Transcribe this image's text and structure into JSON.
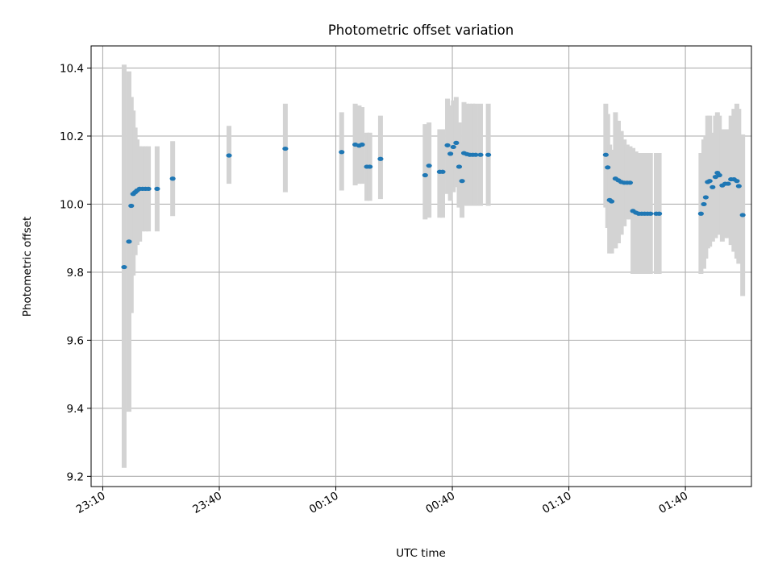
{
  "chart_data": {
    "type": "scatter",
    "title": "Photometric offset variation",
    "xlabel": "UTC time",
    "ylabel": "Photometric offset",
    "x_unit": "UTC clock time",
    "x_ticks": [
      "23:10",
      "23:40",
      "00:10",
      "00:40",
      "01:10",
      "01:40"
    ],
    "y_ticks": [
      "9.2",
      "9.4",
      "9.6",
      "9.8",
      "10.0",
      "10.2",
      "10.4"
    ],
    "ylim": [
      9.17,
      10.465
    ],
    "xlim": [
      "23:07",
      "01:57"
    ],
    "grid": true,
    "error_bar_color": "#d3d3d3",
    "marker_color": "#1f77b4",
    "series": [
      {
        "points": [
          {
            "x": "23:15:30",
            "y": 9.815,
            "lo": 9.225,
            "hi": 10.41
          },
          {
            "x": "23:16:45",
            "y": 9.89,
            "lo": 9.39,
            "hi": 10.39
          },
          {
            "x": "23:17:20",
            "y": 9.995,
            "lo": 9.68,
            "hi": 10.315
          },
          {
            "x": "23:17:50",
            "y": 10.03,
            "lo": 9.79,
            "hi": 10.275
          },
          {
            "x": "23:18:20",
            "y": 10.035,
            "lo": 9.85,
            "hi": 10.225
          },
          {
            "x": "23:18:50",
            "y": 10.04,
            "lo": 9.88,
            "hi": 10.19
          },
          {
            "x": "23:19:30",
            "y": 10.045,
            "lo": 9.89,
            "hi": 10.17
          },
          {
            "x": "23:20:15",
            "y": 10.045,
            "lo": 9.92,
            "hi": 10.17
          },
          {
            "x": "23:21:00",
            "y": 10.045,
            "lo": 9.92,
            "hi": 10.17
          },
          {
            "x": "23:21:45",
            "y": 10.045,
            "lo": 9.92,
            "hi": 10.17
          },
          {
            "x": "23:24:00",
            "y": 10.045,
            "lo": 9.92,
            "hi": 10.17
          },
          {
            "x": "23:28:00",
            "y": 10.075,
            "lo": 9.965,
            "hi": 10.185
          },
          {
            "x": "23:42:30",
            "y": 10.143,
            "lo": 10.06,
            "hi": 10.23
          },
          {
            "x": "23:57:00",
            "y": 10.163,
            "lo": 10.035,
            "hi": 10.295
          },
          {
            "x": "00:11:30",
            "y": 10.153,
            "lo": 10.04,
            "hi": 10.27
          },
          {
            "x": "00:15:00",
            "y": 10.175,
            "lo": 10.055,
            "hi": 10.295
          },
          {
            "x": "00:16:00",
            "y": 10.172,
            "lo": 10.06,
            "hi": 10.29
          },
          {
            "x": "00:16:45",
            "y": 10.175,
            "lo": 10.06,
            "hi": 10.285
          },
          {
            "x": "00:18:00",
            "y": 10.11,
            "lo": 10.01,
            "hi": 10.21
          },
          {
            "x": "00:18:45",
            "y": 10.11,
            "lo": 10.01,
            "hi": 10.21
          },
          {
            "x": "00:21:30",
            "y": 10.133,
            "lo": 10.015,
            "hi": 10.26
          },
          {
            "x": "00:33:00",
            "y": 10.085,
            "lo": 9.955,
            "hi": 10.235
          },
          {
            "x": "00:34:00",
            "y": 10.113,
            "lo": 9.96,
            "hi": 10.24
          },
          {
            "x": "00:36:45",
            "y": 10.095,
            "lo": 9.96,
            "hi": 10.22
          },
          {
            "x": "00:37:30",
            "y": 10.095,
            "lo": 9.96,
            "hi": 10.22
          },
          {
            "x": "00:38:45",
            "y": 10.173,
            "lo": 10.03,
            "hi": 10.31
          },
          {
            "x": "00:39:30",
            "y": 10.148,
            "lo": 10.01,
            "hi": 10.29
          },
          {
            "x": "00:40:15",
            "y": 10.168,
            "lo": 10.035,
            "hi": 10.305
          },
          {
            "x": "00:41:00",
            "y": 10.18,
            "lo": 10.05,
            "hi": 10.315
          },
          {
            "x": "00:41:45",
            "y": 10.11,
            "lo": 9.99,
            "hi": 10.24
          },
          {
            "x": "00:42:30",
            "y": 10.068,
            "lo": 9.96,
            "hi": 10.18
          },
          {
            "x": "00:43:00",
            "y": 10.15,
            "lo": 10.0,
            "hi": 10.3
          },
          {
            "x": "00:43:45",
            "y": 10.147,
            "lo": 9.995,
            "hi": 10.295
          },
          {
            "x": "00:44:30",
            "y": 10.145,
            "lo": 9.995,
            "hi": 10.295
          },
          {
            "x": "00:45:15",
            "y": 10.145,
            "lo": 9.995,
            "hi": 10.295
          },
          {
            "x": "00:46:00",
            "y": 10.145,
            "lo": 9.995,
            "hi": 10.295
          },
          {
            "x": "00:47:15",
            "y": 10.145,
            "lo": 9.995,
            "hi": 10.295
          },
          {
            "x": "00:49:15",
            "y": 10.145,
            "lo": 9.995,
            "hi": 10.295
          },
          {
            "x": "01:19:30",
            "y": 10.145,
            "lo": 9.99,
            "hi": 10.295
          },
          {
            "x": "01:20:00",
            "y": 10.108,
            "lo": 9.93,
            "hi": 10.265
          },
          {
            "x": "01:20:30",
            "y": 10.012,
            "lo": 9.855,
            "hi": 10.175
          },
          {
            "x": "01:21:00",
            "y": 10.008,
            "lo": 9.855,
            "hi": 10.16
          },
          {
            "x": "01:22:00",
            "y": 10.075,
            "lo": 9.87,
            "hi": 10.27
          },
          {
            "x": "01:22:45",
            "y": 10.07,
            "lo": 9.885,
            "hi": 10.245
          },
          {
            "x": "01:23:30",
            "y": 10.065,
            "lo": 9.91,
            "hi": 10.215
          },
          {
            "x": "01:24:15",
            "y": 10.063,
            "lo": 9.935,
            "hi": 10.19
          },
          {
            "x": "01:25:00",
            "y": 10.063,
            "lo": 9.955,
            "hi": 10.175
          },
          {
            "x": "01:25:45",
            "y": 10.063,
            "lo": 9.955,
            "hi": 10.17
          },
          {
            "x": "01:26:30",
            "y": 9.98,
            "lo": 9.795,
            "hi": 10.165
          },
          {
            "x": "01:27:15",
            "y": 9.975,
            "lo": 9.795,
            "hi": 10.155
          },
          {
            "x": "01:28:00",
            "y": 9.972,
            "lo": 9.795,
            "hi": 10.15
          },
          {
            "x": "01:28:45",
            "y": 9.972,
            "lo": 9.795,
            "hi": 10.15
          },
          {
            "x": "01:29:30",
            "y": 9.972,
            "lo": 9.795,
            "hi": 10.15
          },
          {
            "x": "01:30:15",
            "y": 9.972,
            "lo": 9.795,
            "hi": 10.15
          },
          {
            "x": "01:31:00",
            "y": 9.972,
            "lo": 9.795,
            "hi": 10.15
          },
          {
            "x": "01:32:30",
            "y": 9.972,
            "lo": 9.795,
            "hi": 10.15
          },
          {
            "x": "01:33:15",
            "y": 9.972,
            "lo": 9.795,
            "hi": 10.15
          },
          {
            "x": "01:44:00",
            "y": 9.972,
            "lo": 9.795,
            "hi": 10.15
          },
          {
            "x": "01:44:45",
            "y": 10.0,
            "lo": 9.81,
            "hi": 10.19
          },
          {
            "x": "01:45:15",
            "y": 10.02,
            "lo": 9.84,
            "hi": 10.2
          },
          {
            "x": "01:45:45",
            "y": 10.065,
            "lo": 9.87,
            "hi": 10.26
          },
          {
            "x": "01:46:15",
            "y": 10.068,
            "lo": 9.875,
            "hi": 10.26
          },
          {
            "x": "01:47:00",
            "y": 10.05,
            "lo": 9.89,
            "hi": 10.21
          },
          {
            "x": "01:47:45",
            "y": 10.08,
            "lo": 9.9,
            "hi": 10.26
          },
          {
            "x": "01:48:15",
            "y": 10.092,
            "lo": 9.91,
            "hi": 10.27
          },
          {
            "x": "01:48:45",
            "y": 10.085,
            "lo": 9.91,
            "hi": 10.26
          },
          {
            "x": "01:49:30",
            "y": 10.055,
            "lo": 9.89,
            "hi": 10.22
          },
          {
            "x": "01:50:15",
            "y": 10.06,
            "lo": 9.9,
            "hi": 10.22
          },
          {
            "x": "01:51:00",
            "y": 10.06,
            "lo": 9.9,
            "hi": 10.22
          },
          {
            "x": "01:51:45",
            "y": 10.073,
            "lo": 9.88,
            "hi": 10.26
          },
          {
            "x": "01:52:30",
            "y": 10.073,
            "lo": 9.86,
            "hi": 10.28
          },
          {
            "x": "01:53:15",
            "y": 10.068,
            "lo": 9.84,
            "hi": 10.295
          },
          {
            "x": "01:53:45",
            "y": 10.053,
            "lo": 9.825,
            "hi": 10.28
          },
          {
            "x": "01:54:45",
            "y": 9.968,
            "lo": 9.73,
            "hi": 10.205
          }
        ]
      }
    ]
  }
}
